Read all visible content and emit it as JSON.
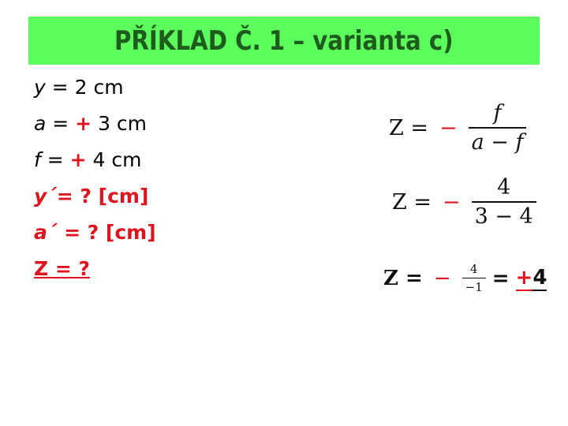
{
  "title": "PŘÍKLAD Č. 1 – varianta c)",
  "given": [
    {
      "var": "y",
      "eq": " = ",
      "sign": "",
      "value": "2 cm"
    },
    {
      "var": "a",
      "eq": " = ",
      "sign": "+",
      "value": " 3 cm"
    },
    {
      "var": "f",
      "eq": " = ",
      "sign": "+",
      "value": " 4 cm"
    }
  ],
  "unknowns": [
    {
      "var": "y´",
      "rest": "= ? [cm]"
    },
    {
      "var": "a´",
      "rest": " = ? [cm]"
    },
    {
      "var": "Z",
      "rest": " = ?"
    }
  ],
  "equations": {
    "eq1": {
      "lhs": "Z =",
      "minus": "−",
      "num": "f",
      "den": "a − f"
    },
    "eq2": {
      "lhs": "Z =",
      "minus": "−",
      "num": "4",
      "den": "3 − 4"
    },
    "eq3": {
      "lhs": "Z =",
      "minus": "−",
      "num": "4",
      "den": "−1",
      "eq": "=",
      "sign": "+",
      "result": "4"
    }
  },
  "colors": {
    "title_bg": "#5dfc5d",
    "title_text": "#1e5c1e",
    "accent_red": "#e0141e"
  }
}
